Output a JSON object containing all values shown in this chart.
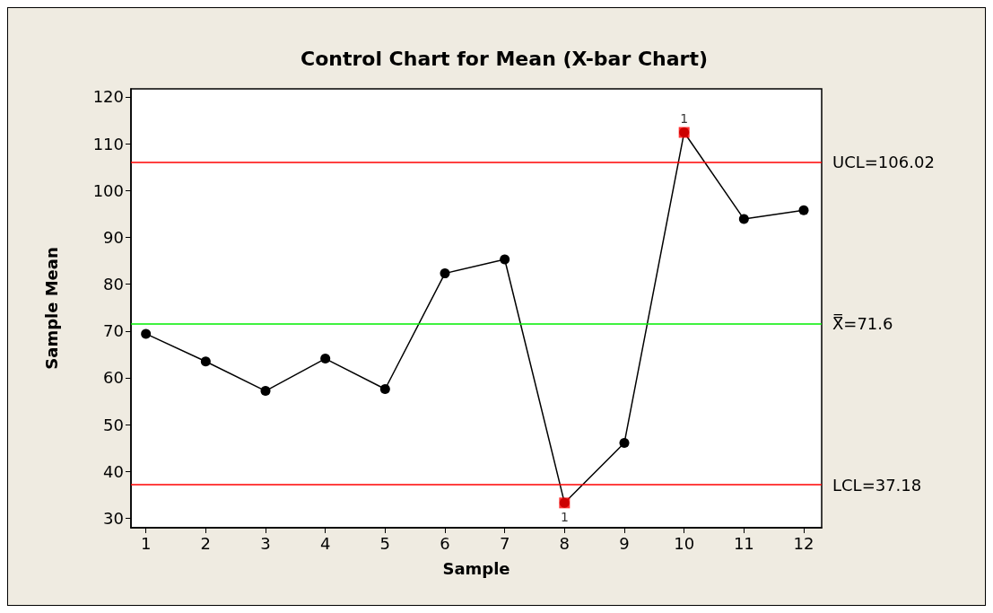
{
  "chart_data": {
    "type": "line",
    "title": "Control Chart for Mean (X-bar Chart)",
    "xlabel": "Sample",
    "ylabel": "Sample Mean",
    "x": [
      1,
      2,
      3,
      4,
      5,
      6,
      7,
      8,
      9,
      10,
      11,
      12
    ],
    "series": [
      {
        "color": "#000000",
        "marker": "circle",
        "values": [
          69.4,
          63.5,
          57.2,
          64.1,
          57.6,
          82.3,
          85.3,
          33.3,
          46.1,
          112.4,
          93.9,
          95.8
        ]
      },
      {
        "type": "scatter",
        "color": "#ff0000",
        "marker": "square",
        "x": [
          8,
          10
        ],
        "values": [
          33.3,
          112.4
        ]
      }
    ],
    "ref_lines": [
      {
        "axis": "y",
        "value": 106.02,
        "label": "UCL=106.02",
        "color": "#ff0000"
      },
      {
        "axis": "y",
        "value": 71.6,
        "label": "X̿=71.6",
        "color": "#00ee00"
      },
      {
        "axis": "y",
        "value": 37.18,
        "label": "LCL=37.18",
        "color": "#ff0000"
      }
    ],
    "xlim": [
      0.75,
      12.3
    ],
    "xticks": [
      1,
      2,
      3,
      4,
      5,
      6,
      7,
      8,
      9,
      10,
      11,
      12
    ],
    "ylim": [
      28,
      121.7
    ],
    "yticks": [
      30,
      40,
      50,
      60,
      70,
      80,
      90,
      100,
      110,
      120
    ],
    "annotations": [
      {
        "text": "1",
        "x": 8,
        "y": 33.3
      },
      {
        "text": "1",
        "x": 10,
        "y": 112.4
      }
    ],
    "grid": false
  }
}
